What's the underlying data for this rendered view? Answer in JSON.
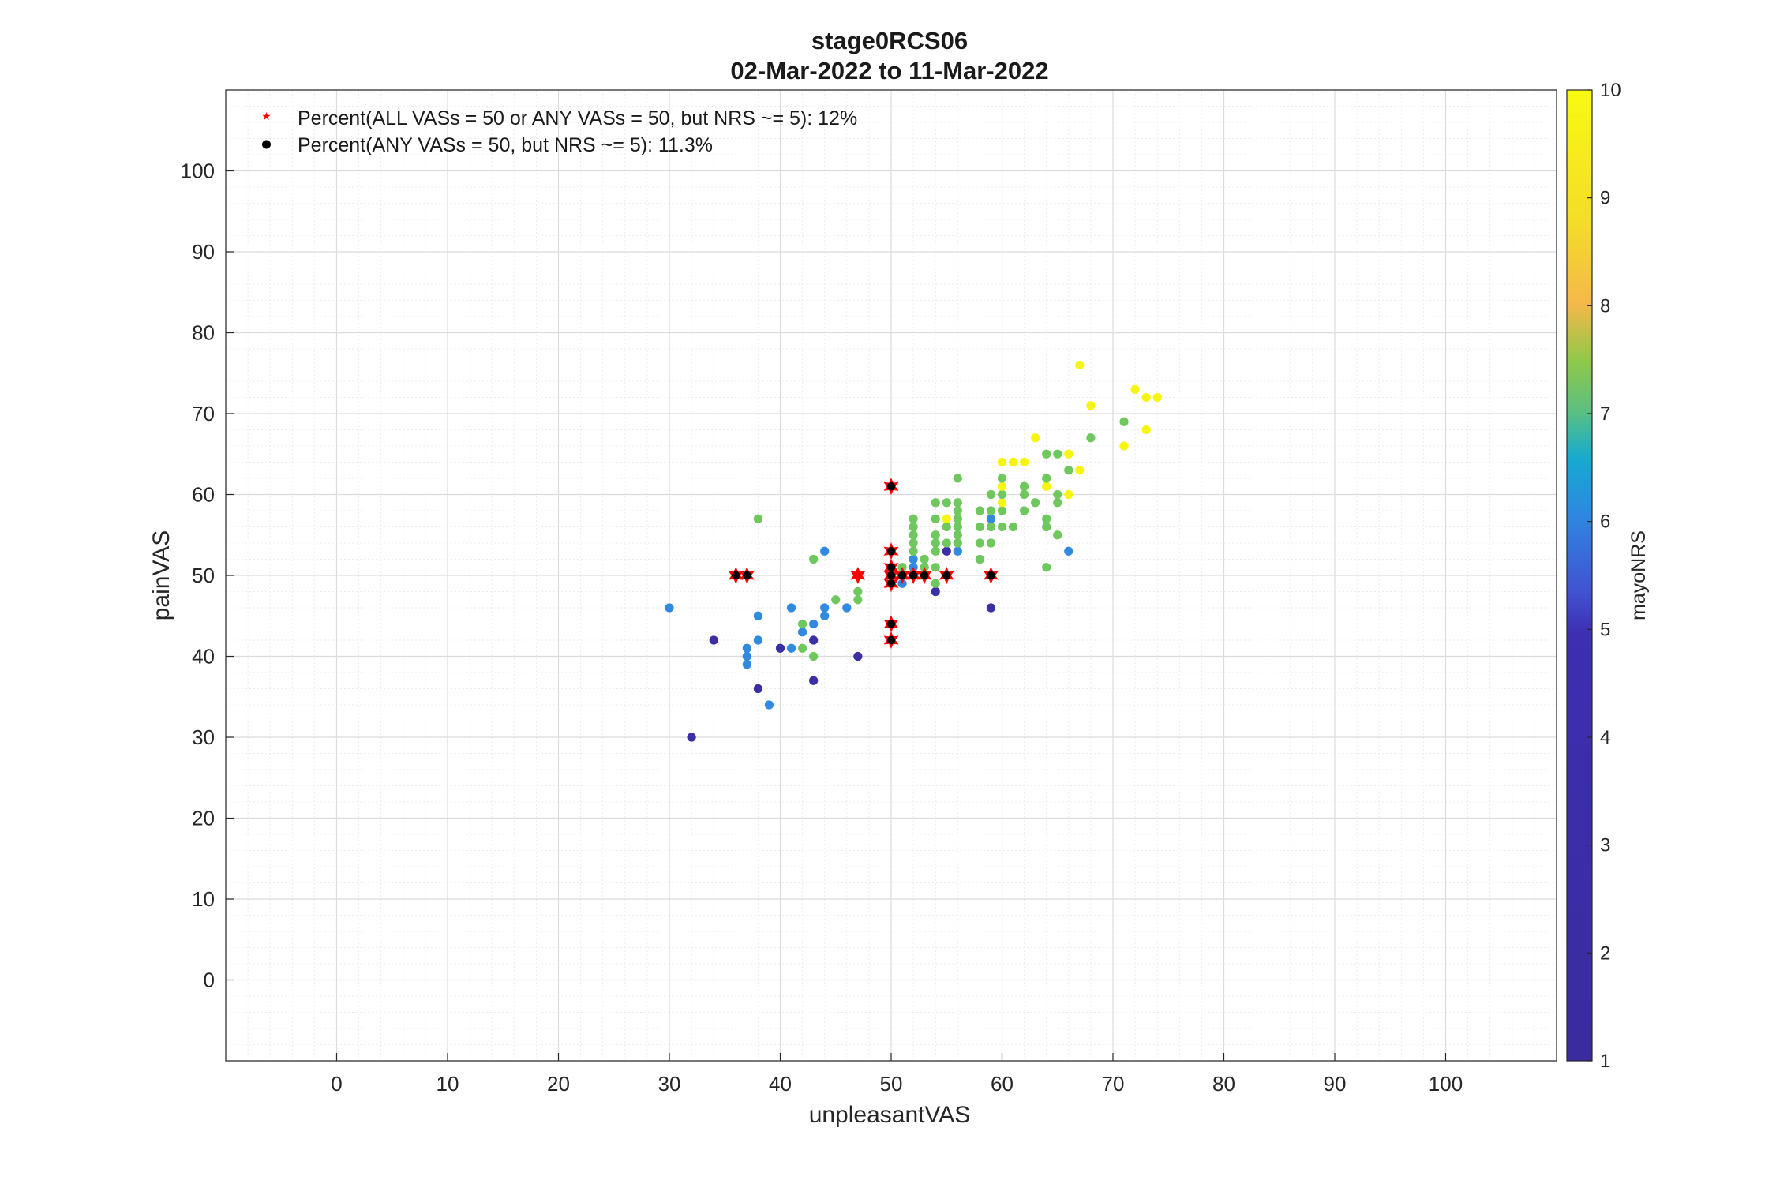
{
  "chart_data": {
    "type": "scatter",
    "title": "stage0RCS06",
    "subtitle": "02-Mar-2022 to 11-Mar-2022",
    "xlabel": "unpleasantVAS",
    "ylabel": "painVAS",
    "xlim": [
      -10,
      110
    ],
    "ylim": [
      -10,
      110
    ],
    "xticks": [
      "0",
      "10",
      "20",
      "30",
      "40",
      "50",
      "60",
      "70",
      "80",
      "90",
      "100"
    ],
    "yticks": [
      "0",
      "10",
      "20",
      "30",
      "40",
      "50",
      "60",
      "70",
      "80",
      "90",
      "100"
    ],
    "grid": true,
    "minor_grid": true,
    "legend_position": "top-left",
    "legend": [
      {
        "label": "Percent(ALL VASs = 50 or ANY VASs = 50, but NRS ~= 5): 12%",
        "marker": "star",
        "color": "#ff0000"
      },
      {
        "label": "Percent(ANY VASs = 50, but NRS ~= 5): 11.3%",
        "marker": "dot",
        "color": "#000000"
      }
    ],
    "colorbar": {
      "label": "mayoNRS",
      "range": [
        1,
        10
      ],
      "ticks": [
        "1",
        "2",
        "3",
        "4",
        "5",
        "6",
        "7",
        "8",
        "9",
        "10"
      ],
      "colors": {
        "nrs1_5": "#3b2fa5",
        "nrs6": "#2f8ae0",
        "nrs7": "#6fc85e",
        "nrs9_10": "#f5f50f"
      }
    },
    "points": [
      {
        "x": 32,
        "y": 30,
        "c": 4
      },
      {
        "x": 30,
        "y": 46,
        "c": 6
      },
      {
        "x": 34,
        "y": 42,
        "c": 4
      },
      {
        "x": 37,
        "y": 39,
        "c": 6
      },
      {
        "x": 37,
        "y": 40,
        "c": 6
      },
      {
        "x": 37,
        "y": 41,
        "c": 6
      },
      {
        "x": 38,
        "y": 36,
        "c": 4
      },
      {
        "x": 38,
        "y": 42,
        "c": 6
      },
      {
        "x": 38,
        "y": 45,
        "c": 6
      },
      {
        "x": 38,
        "y": 57,
        "c": 7
      },
      {
        "x": 39,
        "y": 34,
        "c": 6
      },
      {
        "x": 40,
        "y": 41,
        "c": 4
      },
      {
        "x": 41,
        "y": 41,
        "c": 6
      },
      {
        "x": 41,
        "y": 46,
        "c": 6
      },
      {
        "x": 42,
        "y": 41,
        "c": 7
      },
      {
        "x": 42,
        "y": 43,
        "c": 6
      },
      {
        "x": 42,
        "y": 44,
        "c": 7
      },
      {
        "x": 43,
        "y": 37,
        "c": 4
      },
      {
        "x": 43,
        "y": 40,
        "c": 7
      },
      {
        "x": 43,
        "y": 42,
        "c": 4
      },
      {
        "x": 43,
        "y": 44,
        "c": 6
      },
      {
        "x": 43,
        "y": 52,
        "c": 7
      },
      {
        "x": 44,
        "y": 45,
        "c": 6
      },
      {
        "x": 44,
        "y": 46,
        "c": 6
      },
      {
        "x": 44,
        "y": 53,
        "c": 6
      },
      {
        "x": 45,
        "y": 47,
        "c": 7
      },
      {
        "x": 46,
        "y": 46,
        "c": 6
      },
      {
        "x": 47,
        "y": 40,
        "c": 4
      },
      {
        "x": 47,
        "y": 47,
        "c": 7
      },
      {
        "x": 47,
        "y": 48,
        "c": 7
      },
      {
        "x": 51,
        "y": 49,
        "c": 6
      },
      {
        "x": 51,
        "y": 51,
        "c": 7
      },
      {
        "x": 52,
        "y": 51,
        "c": 6
      },
      {
        "x": 52,
        "y": 52,
        "c": 6
      },
      {
        "x": 52,
        "y": 53,
        "c": 7
      },
      {
        "x": 52,
        "y": 54,
        "c": 7
      },
      {
        "x": 52,
        "y": 55,
        "c": 7
      },
      {
        "x": 52,
        "y": 56,
        "c": 7
      },
      {
        "x": 52,
        "y": 57,
        "c": 7
      },
      {
        "x": 53,
        "y": 51,
        "c": 7
      },
      {
        "x": 53,
        "y": 52,
        "c": 7
      },
      {
        "x": 54,
        "y": 48,
        "c": 4
      },
      {
        "x": 54,
        "y": 49,
        "c": 7
      },
      {
        "x": 54,
        "y": 51,
        "c": 7
      },
      {
        "x": 54,
        "y": 53,
        "c": 7
      },
      {
        "x": 54,
        "y": 54,
        "c": 7
      },
      {
        "x": 54,
        "y": 55,
        "c": 7
      },
      {
        "x": 54,
        "y": 57,
        "c": 7
      },
      {
        "x": 54,
        "y": 59,
        "c": 7
      },
      {
        "x": 55,
        "y": 53,
        "c": 4
      },
      {
        "x": 55,
        "y": 54,
        "c": 7
      },
      {
        "x": 55,
        "y": 56,
        "c": 7
      },
      {
        "x": 55,
        "y": 57,
        "c": 9
      },
      {
        "x": 55,
        "y": 59,
        "c": 7
      },
      {
        "x": 56,
        "y": 53,
        "c": 6
      },
      {
        "x": 56,
        "y": 54,
        "c": 7
      },
      {
        "x": 56,
        "y": 55,
        "c": 7
      },
      {
        "x": 56,
        "y": 56,
        "c": 7
      },
      {
        "x": 56,
        "y": 57,
        "c": 7
      },
      {
        "x": 56,
        "y": 58,
        "c": 7
      },
      {
        "x": 56,
        "y": 59,
        "c": 7
      },
      {
        "x": 56,
        "y": 62,
        "c": 7
      },
      {
        "x": 58,
        "y": 52,
        "c": 7
      },
      {
        "x": 58,
        "y": 54,
        "c": 7
      },
      {
        "x": 58,
        "y": 56,
        "c": 7
      },
      {
        "x": 58,
        "y": 58,
        "c": 7
      },
      {
        "x": 59,
        "y": 46,
        "c": 4
      },
      {
        "x": 59,
        "y": 54,
        "c": 7
      },
      {
        "x": 59,
        "y": 56,
        "c": 7
      },
      {
        "x": 59,
        "y": 57,
        "c": 6
      },
      {
        "x": 59,
        "y": 58,
        "c": 7
      },
      {
        "x": 59,
        "y": 60,
        "c": 7
      },
      {
        "x": 60,
        "y": 56,
        "c": 7
      },
      {
        "x": 60,
        "y": 58,
        "c": 7
      },
      {
        "x": 60,
        "y": 59,
        "c": 9
      },
      {
        "x": 60,
        "y": 60,
        "c": 7
      },
      {
        "x": 60,
        "y": 61,
        "c": 9
      },
      {
        "x": 60,
        "y": 62,
        "c": 7
      },
      {
        "x": 60,
        "y": 64,
        "c": 9
      },
      {
        "x": 61,
        "y": 56,
        "c": 7
      },
      {
        "x": 61,
        "y": 64,
        "c": 9
      },
      {
        "x": 62,
        "y": 58,
        "c": 7
      },
      {
        "x": 62,
        "y": 60,
        "c": 7
      },
      {
        "x": 62,
        "y": 61,
        "c": 7
      },
      {
        "x": 62,
        "y": 64,
        "c": 9
      },
      {
        "x": 63,
        "y": 59,
        "c": 7
      },
      {
        "x": 63,
        "y": 67,
        "c": 9
      },
      {
        "x": 64,
        "y": 51,
        "c": 7
      },
      {
        "x": 64,
        "y": 56,
        "c": 7
      },
      {
        "x": 64,
        "y": 57,
        "c": 7
      },
      {
        "x": 64,
        "y": 61,
        "c": 9
      },
      {
        "x": 64,
        "y": 62,
        "c": 7
      },
      {
        "x": 64,
        "y": 65,
        "c": 7
      },
      {
        "x": 65,
        "y": 55,
        "c": 7
      },
      {
        "x": 65,
        "y": 59,
        "c": 7
      },
      {
        "x": 65,
        "y": 60,
        "c": 7
      },
      {
        "x": 65,
        "y": 65,
        "c": 7
      },
      {
        "x": 66,
        "y": 53,
        "c": 6
      },
      {
        "x": 66,
        "y": 60,
        "c": 9
      },
      {
        "x": 66,
        "y": 63,
        "c": 7
      },
      {
        "x": 66,
        "y": 65,
        "c": 9
      },
      {
        "x": 67,
        "y": 63,
        "c": 9
      },
      {
        "x": 67,
        "y": 76,
        "c": 9
      },
      {
        "x": 68,
        "y": 67,
        "c": 7
      },
      {
        "x": 68,
        "y": 71,
        "c": 9
      },
      {
        "x": 71,
        "y": 66,
        "c": 9
      },
      {
        "x": 71,
        "y": 69,
        "c": 7
      },
      {
        "x": 72,
        "y": 73,
        "c": 9
      },
      {
        "x": 73,
        "y": 68,
        "c": 9
      },
      {
        "x": 73,
        "y": 72,
        "c": 9
      },
      {
        "x": 74,
        "y": 72,
        "c": 9
      }
    ],
    "star_points": [
      {
        "x": 36,
        "y": 50
      },
      {
        "x": 37,
        "y": 50
      },
      {
        "x": 47,
        "y": 50
      },
      {
        "x": 50,
        "y": 61
      },
      {
        "x": 50,
        "y": 53
      },
      {
        "x": 50,
        "y": 51
      },
      {
        "x": 50,
        "y": 50
      },
      {
        "x": 50,
        "y": 49
      },
      {
        "x": 50,
        "y": 44
      },
      {
        "x": 50,
        "y": 42
      },
      {
        "x": 51,
        "y": 50
      },
      {
        "x": 52,
        "y": 50
      },
      {
        "x": 53,
        "y": 50
      },
      {
        "x": 55,
        "y": 50
      },
      {
        "x": 59,
        "y": 50
      }
    ],
    "black_points": [
      {
        "x": 36,
        "y": 50
      },
      {
        "x": 37,
        "y": 50
      },
      {
        "x": 50,
        "y": 61
      },
      {
        "x": 50,
        "y": 53
      },
      {
        "x": 50,
        "y": 51
      },
      {
        "x": 50,
        "y": 50
      },
      {
        "x": 50,
        "y": 49
      },
      {
        "x": 50,
        "y": 44
      },
      {
        "x": 50,
        "y": 42
      },
      {
        "x": 51,
        "y": 50
      },
      {
        "x": 52,
        "y": 50
      },
      {
        "x": 53,
        "y": 50
      },
      {
        "x": 55,
        "y": 50
      },
      {
        "x": 59,
        "y": 50
      }
    ]
  }
}
